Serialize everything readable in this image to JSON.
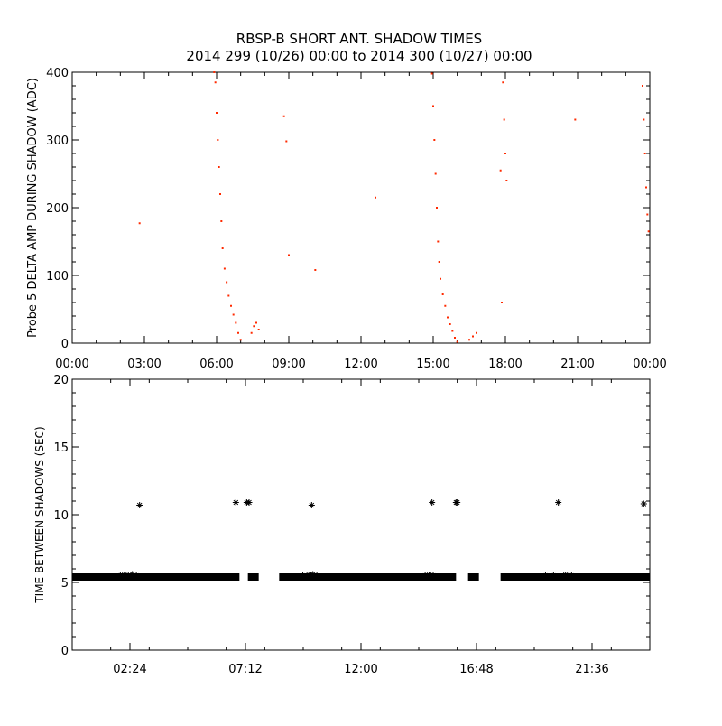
{
  "title_line1": "RBSP-B SHORT ANT. SHADOW TIMES",
  "title_line2": "2014 299 (10/26) 00:00 to 2014 300 (10/27) 00:00",
  "colors": {
    "series_top": "#ff2a00",
    "series_bottom": "#000000",
    "axes": "#000000",
    "background": "#ffffff"
  },
  "chart_data": [
    {
      "type": "scatter",
      "ylabel": "Probe 5 DELTA AMP DURING SHADOW (ADC)",
      "xlabel": "",
      "xlim": [
        "00:00",
        "24:00"
      ],
      "ylim": [
        0,
        400
      ],
      "x_tick_labels": [
        "00:00",
        "03:00",
        "06:00",
        "09:00",
        "12:00",
        "15:00",
        "18:00",
        "21:00",
        "00:00"
      ],
      "y_tick_labels": [
        "0",
        "100",
        "200",
        "300",
        "400"
      ],
      "marker": "dot",
      "grid": false,
      "series": [
        {
          "x": [
            "02:48",
            "05:54",
            "05:57",
            "06:00",
            "06:03",
            "06:06",
            "06:09",
            "06:12",
            "06:15",
            "06:20",
            "06:25",
            "06:30",
            "06:36",
            "06:42",
            "06:48",
            "06:54",
            "07:00",
            "07:27",
            "07:33",
            "07:39",
            "07:45",
            "08:48",
            "08:54",
            "09:00",
            "10:06",
            "12:36",
            "14:57",
            "15:00",
            "15:03",
            "15:06",
            "15:09",
            "15:12",
            "15:15",
            "15:18",
            "15:24",
            "15:30",
            "15:36",
            "15:42",
            "15:48",
            "15:54",
            "16:00",
            "16:30",
            "16:39",
            "16:48",
            "17:48",
            "17:51",
            "17:54",
            "17:57",
            "18:00",
            "18:03",
            "20:54",
            "23:42",
            "23:45",
            "23:48",
            "23:51",
            "23:54",
            "23:57"
          ],
          "y": [
            177,
            400,
            385,
            340,
            300,
            260,
            220,
            180,
            140,
            110,
            90,
            70,
            55,
            42,
            30,
            15,
            5,
            15,
            25,
            30,
            20,
            335,
            298,
            130,
            108,
            215,
            398,
            350,
            300,
            250,
            200,
            150,
            120,
            95,
            72,
            55,
            38,
            28,
            18,
            8,
            2,
            5,
            10,
            15,
            255,
            60,
            385,
            330,
            280,
            240,
            330,
            380,
            330,
            280,
            230,
            190,
            165
          ]
        }
      ]
    },
    {
      "type": "scatter",
      "ylabel": "TIME BETWEEN SHADOWS (SEC)",
      "xlabel": "",
      "xlim": [
        "00:00",
        "24:00"
      ],
      "ylim": [
        0,
        20
      ],
      "x_tick_labels": [
        "02:24",
        "07:12",
        "12:00",
        "16:48",
        "21:36"
      ],
      "y_tick_labels": [
        "0",
        "5",
        "10",
        "15",
        "20"
      ],
      "marker": "asterisk",
      "grid": false,
      "series": [
        {
          "x": [
            "02:48",
            "06:48",
            "07:15",
            "07:21",
            "09:57",
            "14:57",
            "15:57",
            "16:00",
            "20:12",
            "23:45"
          ],
          "y": [
            10.7,
            10.9,
            10.9,
            10.9,
            10.7,
            10.9,
            10.9,
            10.9,
            10.9,
            10.8
          ]
        },
        {
          "type": "band",
          "y": 5.4,
          "x_start": [
            "00:00",
            "07:18",
            "08:36",
            "16:27",
            "17:48"
          ],
          "x_end": [
            "06:57",
            "07:45",
            "15:57",
            "16:54",
            "24:00"
          ]
        },
        {
          "x": [
            "02:00",
            "02:10",
            "02:20",
            "02:30",
            "02:40",
            "09:35",
            "09:50",
            "10:00",
            "10:10",
            "14:40",
            "14:50",
            "15:00",
            "19:40",
            "20:00",
            "20:30",
            "20:45"
          ],
          "y": [
            5.5,
            5.55,
            5.5,
            5.6,
            5.5,
            5.5,
            5.55,
            5.6,
            5.5,
            5.5,
            5.55,
            5.5,
            5.5,
            5.5,
            5.55,
            5.5
          ]
        }
      ]
    }
  ]
}
